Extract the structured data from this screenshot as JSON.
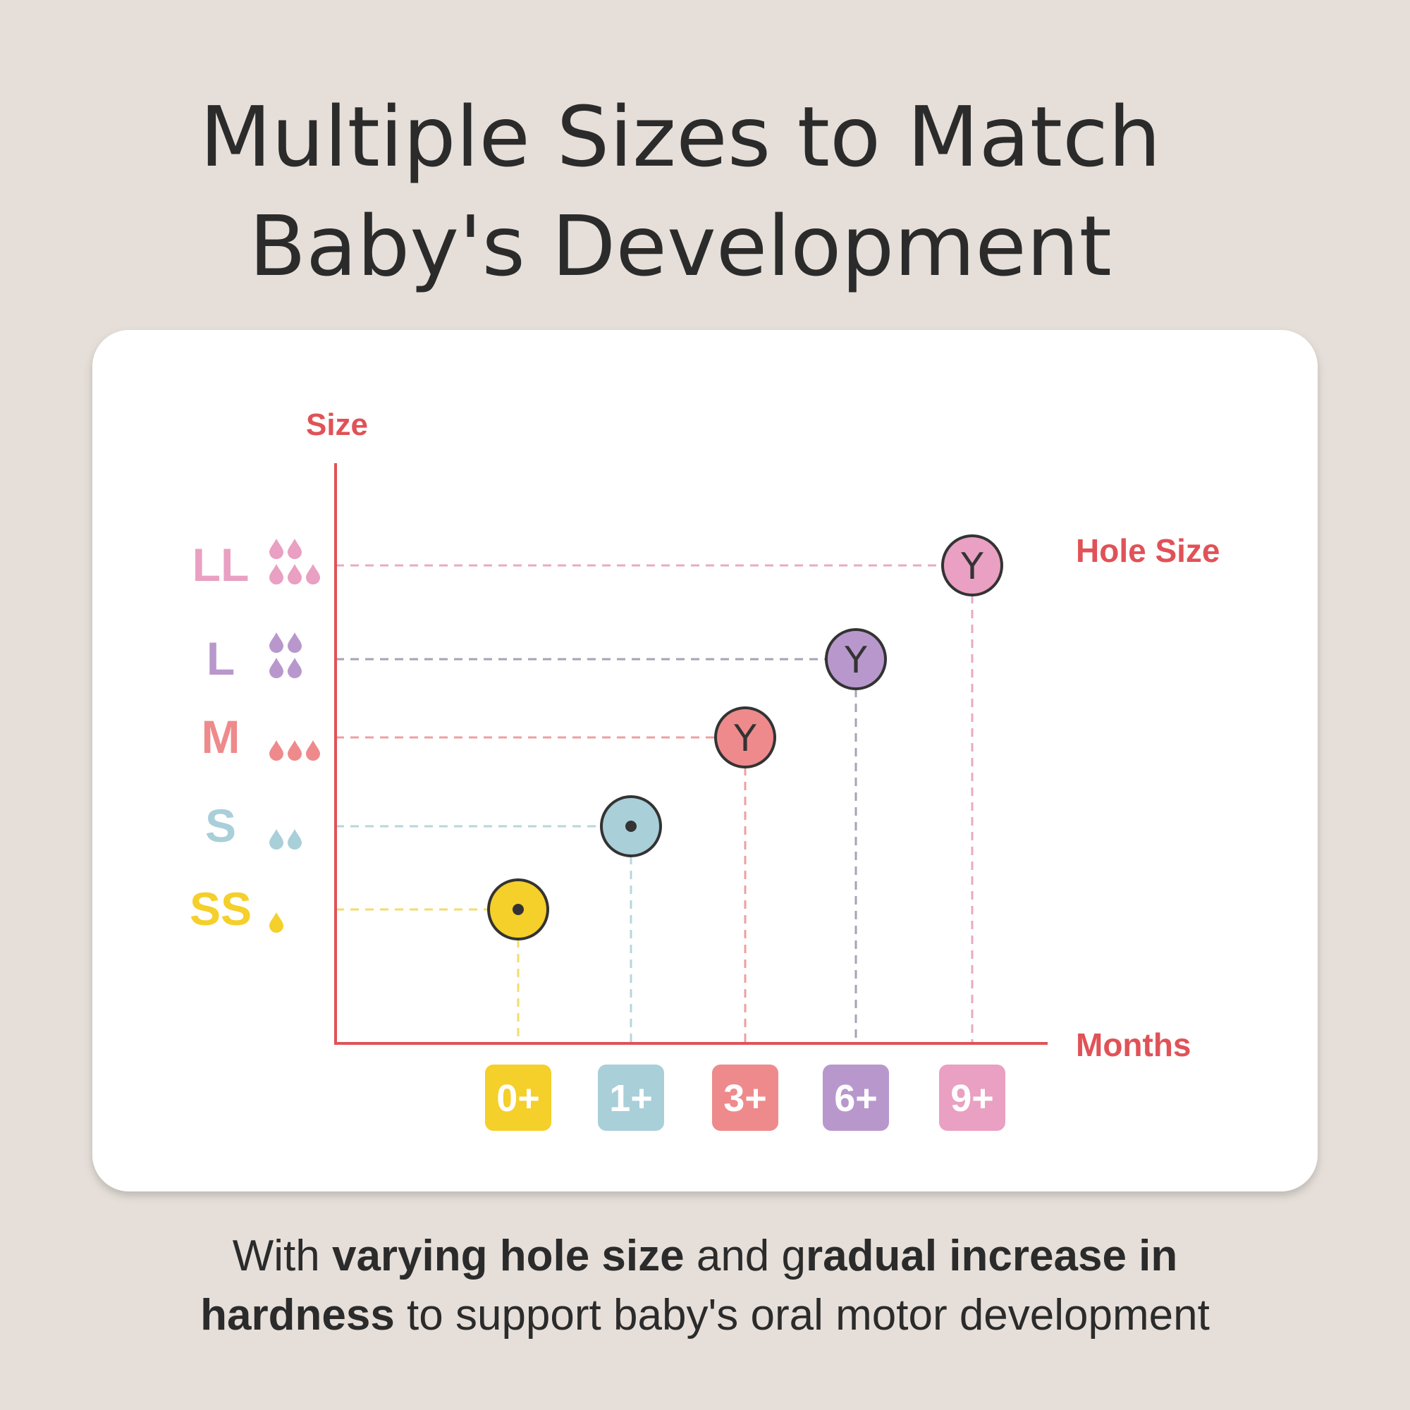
{
  "title": [
    "Multiple Sizes to Match",
    "Baby's Development"
  ],
  "chart": {
    "y_label": "Size",
    "x_label": "Months",
    "hole_label": "Hole Size",
    "sizes": [
      {
        "label": "SS",
        "color": "#f5cf2a",
        "line": "#f3dc6e",
        "drops": 1,
        "month": "0+"
      },
      {
        "label": "S",
        "color": "#a9cfd9",
        "line": "#b8d6dc",
        "drops": 2,
        "month": "1+"
      },
      {
        "label": "M",
        "color": "#ee8a8c",
        "line": "#ef9fa1",
        "drops": 3,
        "month": "3+",
        "hole": "Y"
      },
      {
        "label": "L",
        "color": "#b898cc",
        "line": "#a9a1b6",
        "drops": 4,
        "month": "6+",
        "hole": "Y"
      },
      {
        "label": "LL",
        "color": "#e9a0c2",
        "line": "#e9aac6",
        "drops": 5,
        "month": "9+",
        "hole": "Y"
      }
    ]
  },
  "footer": [
    [
      {
        "text": "With ",
        "bold": false
      },
      {
        "text": "varying hole size",
        "bold": true
      },
      {
        "text": " and g",
        "bold": false
      },
      {
        "text": "radual increase in",
        "bold": true
      }
    ],
    [
      {
        "text": "hardness",
        "bold": true
      },
      {
        "text": " to support baby's oral motor development",
        "bold": false
      }
    ]
  ]
}
